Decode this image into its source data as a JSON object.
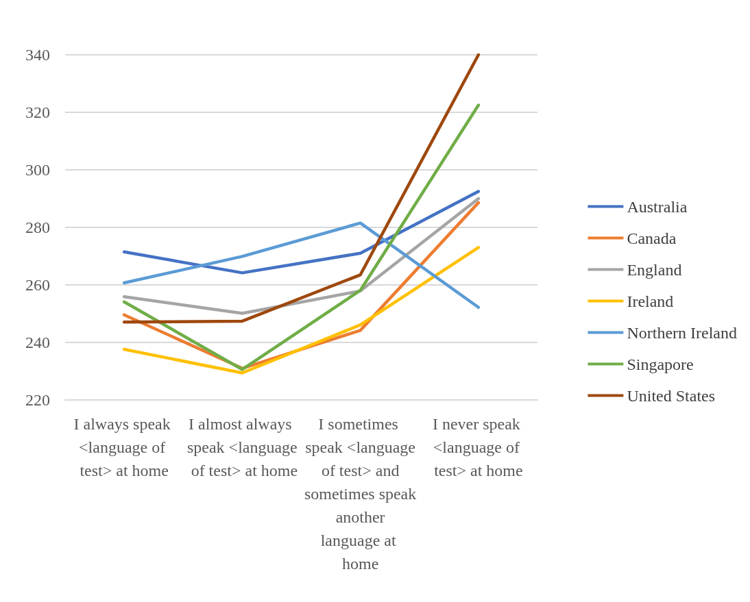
{
  "chart_data": {
    "type": "line",
    "categories": [
      "I always speak <language of test> at home",
      "I almost always speak <language of test> at home",
      "I sometimes speak <language of test> and sometimes speak another language at home",
      "I never speak <language of test> at home"
    ],
    "ylim": [
      220,
      340
    ],
    "yticks": [
      220,
      240,
      260,
      280,
      300,
      320,
      340
    ],
    "grid": "y",
    "legend": "right",
    "marker": "none",
    "line_style": "solid",
    "series": [
      {
        "name": "Australia",
        "color": "#4472c4",
        "values": [
          271.5,
          264.2,
          271,
          292.5
        ]
      },
      {
        "name": "Canada",
        "color": "#ed7d31",
        "values": [
          249.6,
          231,
          244.2,
          288.6
        ]
      },
      {
        "name": "England",
        "color": "#a5a5a5",
        "values": [
          255.9,
          250.1,
          257.9,
          290
        ]
      },
      {
        "name": "Ireland",
        "color": "#ffc000",
        "values": [
          237.6,
          229.4,
          246.1,
          273
        ]
      },
      {
        "name": "Northern Ireland",
        "color": "#5b9bd5",
        "values": [
          260.7,
          269.9,
          281.5,
          252.2
        ]
      },
      {
        "name": "Singapore",
        "color": "#70ad47",
        "values": [
          254.1,
          230.6,
          258.1,
          322.5
        ]
      },
      {
        "name": "United States",
        "color": "#9e480e",
        "values": [
          247.1,
          247.4,
          263.5,
          340
        ]
      }
    ]
  }
}
